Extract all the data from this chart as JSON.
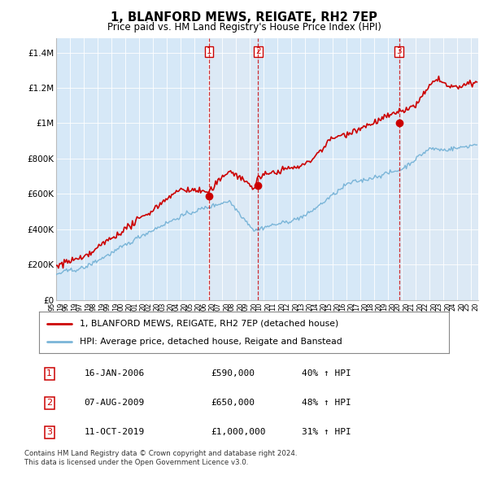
{
  "title": "1, BLANFORD MEWS, REIGATE, RH2 7EP",
  "subtitle": "Price paid vs. HM Land Registry's House Price Index (HPI)",
  "background_color": "#dce9f5",
  "plot_bg_color": "#d6e8f7",
  "transactions": [
    {
      "num": 1,
      "date_label": "16-JAN-2006",
      "price": 590000,
      "hpi_pct": "40%",
      "x_year": 2006.04
    },
    {
      "num": 2,
      "date_label": "07-AUG-2009",
      "price": 650000,
      "hpi_pct": "48%",
      "x_year": 2009.6
    },
    {
      "num": 3,
      "date_label": "11-OCT-2019",
      "price": 1000000,
      "hpi_pct": "31%",
      "x_year": 2019.78
    }
  ],
  "legend_line1": "1, BLANFORD MEWS, REIGATE, RH2 7EP (detached house)",
  "legend_line2": "HPI: Average price, detached house, Reigate and Banstead",
  "footer_line1": "Contains HM Land Registry data © Crown copyright and database right 2024.",
  "footer_line2": "This data is licensed under the Open Government Licence v3.0.",
  "xmin": 1995.0,
  "xmax": 2025.5,
  "ymin": 0,
  "ymax": 1480000,
  "yticks": [
    0,
    200000,
    400000,
    600000,
    800000,
    1000000,
    1200000,
    1400000
  ],
  "ytick_labels": [
    "£0",
    "£200K",
    "£400K",
    "£600K",
    "£800K",
    "£1M",
    "£1.2M",
    "£1.4M"
  ],
  "red_color": "#cc0000",
  "blue_color": "#7ab5d8",
  "shade_color": "#deeaf5"
}
